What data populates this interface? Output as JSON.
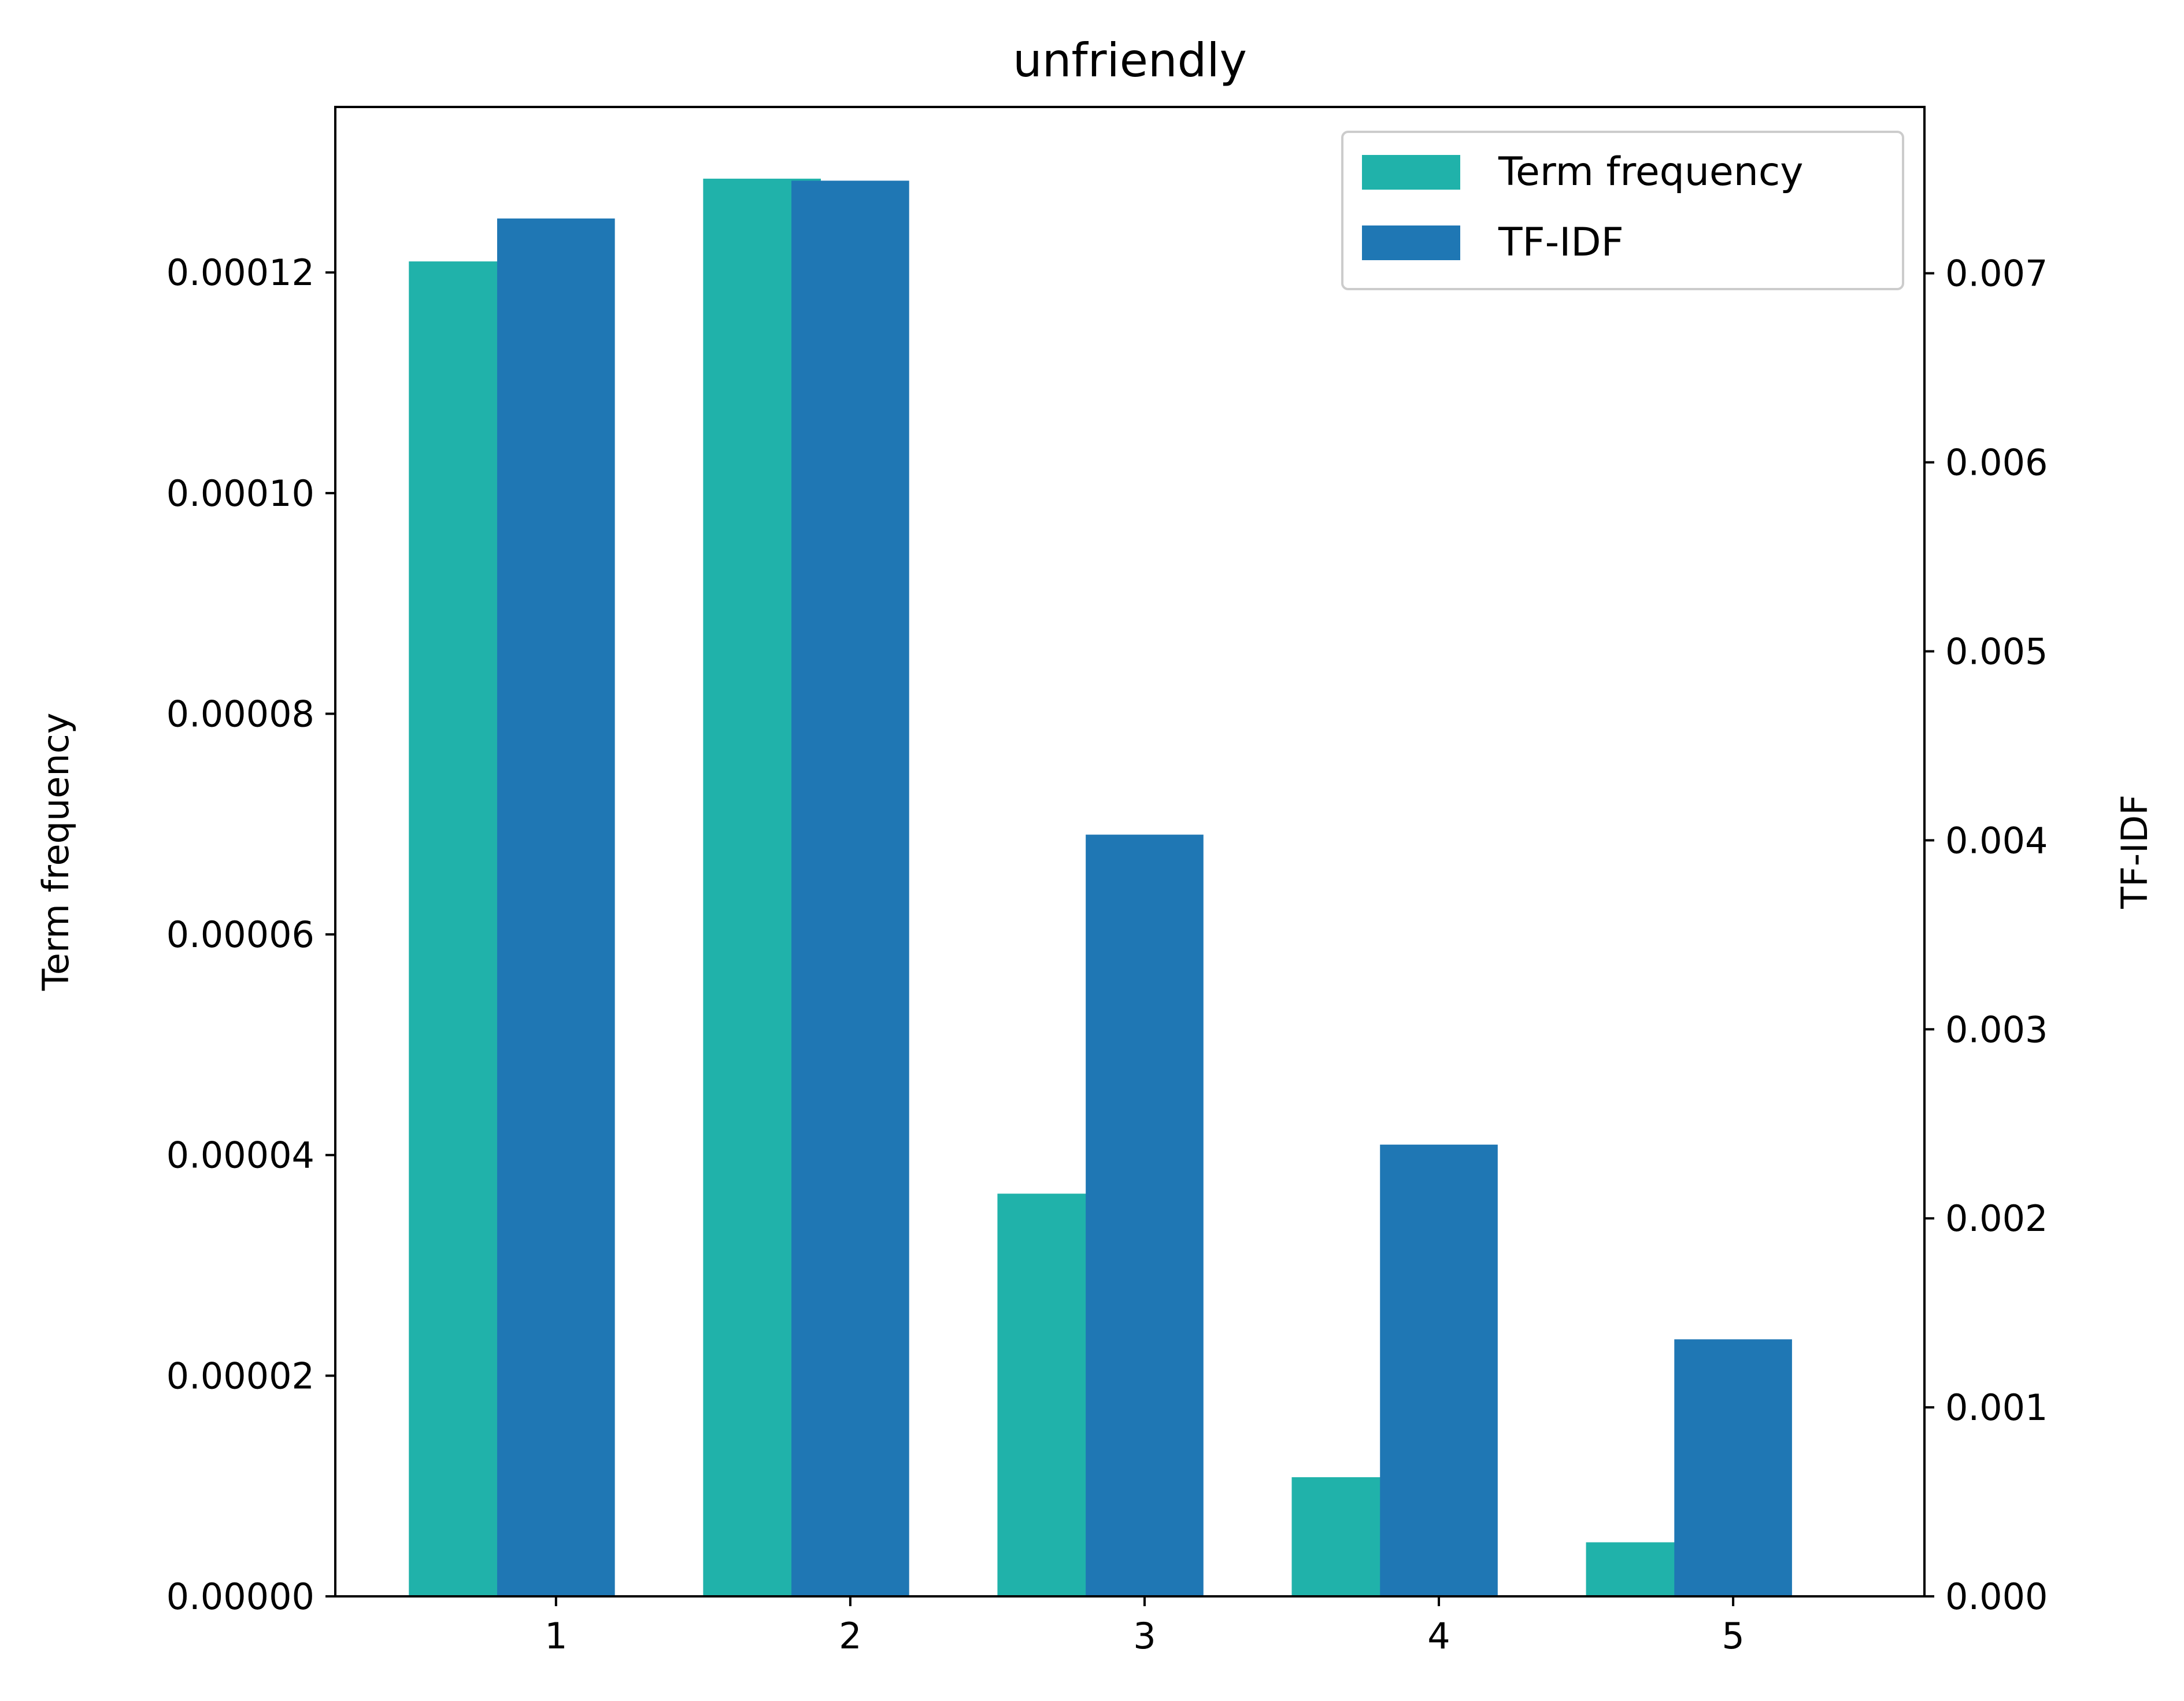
{
  "chart_data": {
    "type": "bar",
    "title": "unfriendly",
    "xlabel": "",
    "categories": [
      "1",
      "2",
      "3",
      "4",
      "5"
    ],
    "x": [
      1,
      2,
      3,
      4,
      5
    ],
    "xlim": [
      0.25,
      5.65
    ],
    "y_left": {
      "label": "Term frequency",
      "lim": [
        0,
        0.000135
      ],
      "ticks": [
        0,
        2e-05,
        4e-05,
        6e-05,
        8e-05,
        0.0001,
        0.00012
      ],
      "tick_labels": [
        "0.00000",
        "0.00002",
        "0.00004",
        "0.00006",
        "0.00008",
        "0.00010",
        "0.00012"
      ]
    },
    "y_right": {
      "label": "TF-IDF",
      "lim": [
        0,
        0.00788
      ],
      "ticks": [
        0,
        0.001,
        0.002,
        0.003,
        0.004,
        0.005,
        0.006,
        0.007
      ],
      "tick_labels": [
        "0.000",
        "0.001",
        "0.002",
        "0.003",
        "0.004",
        "0.005",
        "0.006",
        "0.007"
      ]
    },
    "series": [
      {
        "name": "Term frequency",
        "axis": "left",
        "color": "#20b2aa",
        "offset": -0.3,
        "values": [
          0.000121,
          0.0001285,
          3.65e-05,
          1.08e-05,
          4.9e-06
        ]
      },
      {
        "name": "TF-IDF",
        "axis": "right",
        "color": "#1f77b4",
        "offset": 0,
        "values": [
          0.00729,
          0.00749,
          0.00403,
          0.00239,
          0.00136
        ]
      }
    ],
    "bar_width": 0.4,
    "legend_position": "top-right",
    "grid": false
  }
}
